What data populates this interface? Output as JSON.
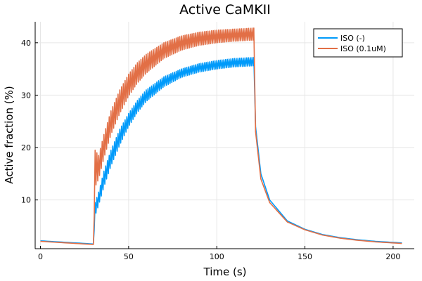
{
  "chart_data": {
    "type": "line",
    "title": "Active CaMKII",
    "xlabel": "Time (s)",
    "ylabel": "Active fraction (%)",
    "xlim": [
      -3,
      212
    ],
    "ylim": [
      0.7,
      44
    ],
    "x_ticks": [
      0,
      50,
      100,
      150,
      200
    ],
    "x_tick_labels": [
      "0",
      "50",
      "100",
      "150",
      "200"
    ],
    "y_ticks": [
      10,
      20,
      30,
      40
    ],
    "y_tick_labels": [
      "10",
      "20",
      "30",
      "40"
    ],
    "grid": true,
    "legend_position": "top-right",
    "pacing": {
      "start": 30,
      "end": 121,
      "period": 1
    },
    "series": [
      {
        "name": "ISO (-)",
        "color": "#009AFA",
        "x": [
          0,
          10,
          20,
          30,
          31,
          33,
          36,
          40,
          45,
          50,
          55,
          60,
          70,
          80,
          90,
          100,
          110,
          121,
          122,
          125,
          130,
          140,
          150,
          160,
          170,
          180,
          190,
          205
        ],
        "lower": [
          2.2,
          2.0,
          1.8,
          1.6,
          7.0,
          9.0,
          12.5,
          16.5,
          20.5,
          24.0,
          26.7,
          28.8,
          31.6,
          33.4,
          34.4,
          35.0,
          35.4,
          35.6,
          24.0,
          15.0,
          10.0,
          6.0,
          4.4,
          3.4,
          2.8,
          2.4,
          2.1,
          1.8
        ],
        "upper": [
          2.2,
          2.0,
          1.8,
          1.6,
          9.5,
          11.5,
          15.5,
          19.5,
          23.5,
          26.5,
          29.0,
          31.0,
          33.5,
          35.0,
          36.0,
          36.6,
          37.0,
          37.2,
          24.0,
          15.0,
          10.0,
          6.0,
          4.4,
          3.4,
          2.8,
          2.4,
          2.1,
          1.8
        ]
      },
      {
        "name": "ISO (0.1uM)",
        "color": "#E26F46",
        "x": [
          0,
          10,
          20,
          30,
          31,
          33,
          36,
          40,
          45,
          50,
          55,
          60,
          70,
          80,
          90,
          100,
          110,
          121,
          122,
          125,
          130,
          140,
          150,
          160,
          170,
          180,
          190,
          205
        ],
        "lower": [
          2.1,
          1.9,
          1.7,
          1.5,
          12.5,
          14.0,
          18.0,
          22.5,
          26.5,
          29.8,
          32.3,
          34.2,
          37.0,
          38.6,
          39.5,
          40.0,
          40.3,
          40.5,
          23.0,
          14.0,
          9.5,
          5.8,
          4.3,
          3.3,
          2.7,
          2.3,
          2.0,
          1.7
        ],
        "upper": [
          2.1,
          1.9,
          1.7,
          1.5,
          19.5,
          18.5,
          22.5,
          27.0,
          31.0,
          34.0,
          36.2,
          37.8,
          40.0,
          41.3,
          42.0,
          42.4,
          42.6,
          42.8,
          23.0,
          14.0,
          9.5,
          5.8,
          4.3,
          3.3,
          2.7,
          2.3,
          2.0,
          1.7
        ]
      }
    ]
  }
}
